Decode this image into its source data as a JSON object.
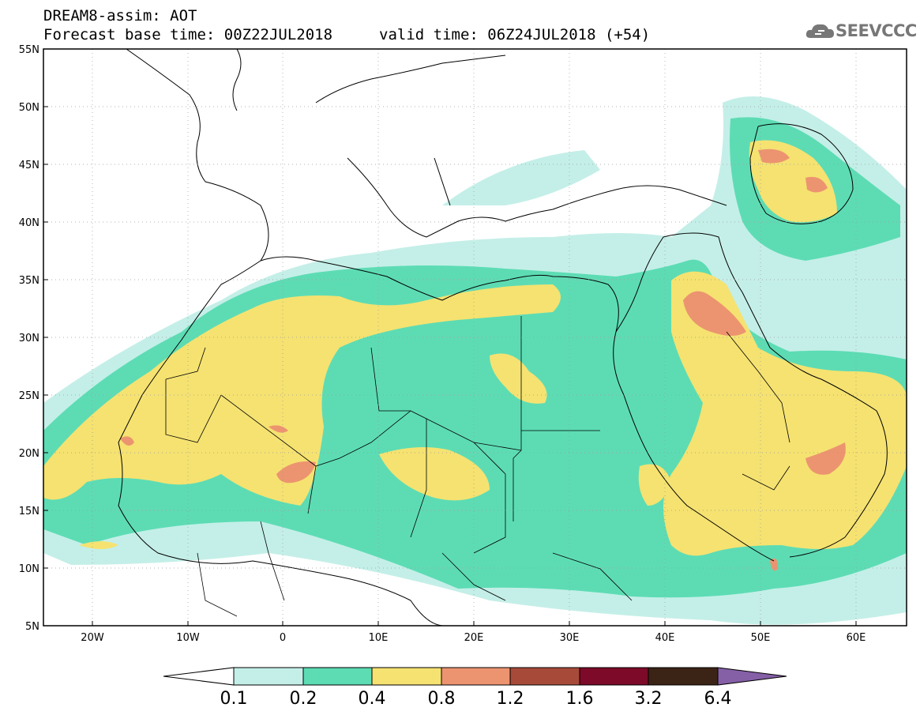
{
  "header": {
    "title": "DREAM8-assim: AOT",
    "base_time": "Forecast base time: 00Z22JUL2018",
    "valid_time": "valid time: 06Z24JUL2018 (+54)",
    "logo_text": "SEEVCCC"
  },
  "map": {
    "variable": "AOT",
    "lon_range": [
      -25,
      65
    ],
    "lat_range": [
      5,
      55
    ],
    "lat_ticks": [
      "5N",
      "10N",
      "15N",
      "20N",
      "25N",
      "30N",
      "35N",
      "40N",
      "45N",
      "50N",
      "55N"
    ],
    "lon_ticks": [
      "20W",
      "10W",
      "0",
      "10E",
      "20E",
      "30E",
      "40E",
      "50E",
      "60E"
    ],
    "ocean_color": "#ffffff",
    "boundary_color": "#000000"
  },
  "colorbar": {
    "levels": [
      "0.1",
      "0.2",
      "0.4",
      "0.8",
      "1.2",
      "1.6",
      "3.2",
      "6.4"
    ],
    "colors": [
      "#c4efe8",
      "#5ddcb4",
      "#f5e271",
      "#ec9470",
      "#a84a3a",
      "#7d0a28",
      "#3b2415",
      "#8560a6"
    ]
  }
}
